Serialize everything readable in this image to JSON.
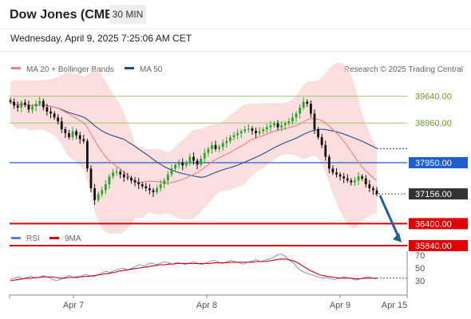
{
  "header": {
    "title": "Dow Jones (CME)",
    "interval": "30 MIN",
    "datetime": "Wednesday, April 9, 2025 7:25:06 AM CET"
  },
  "legend": {
    "items": [
      {
        "label": "MA 20 + Bollinger Bands",
        "color": "#f08080"
      },
      {
        "label": "MA 50",
        "color": "#1f4e8c"
      }
    ],
    "copyright": "Research © 2025 Trading Central"
  },
  "rsi_legend": {
    "items": [
      {
        "label": "RSI",
        "color": "#5b7fe0"
      },
      {
        "label": "9MA",
        "color": "#e00000"
      }
    ]
  },
  "colors": {
    "up": "#22aa22",
    "down": "#111111",
    "resistance": "#99cc66",
    "pivot": "#1f5fd0",
    "support": "#e00000",
    "band": "#f8c8c8",
    "ma20": "#f08080",
    "ma50": "#1f4e8c",
    "arrow": "#1f5fa0",
    "current": "#333333"
  },
  "chart_data": [
    {
      "type": "candlestick",
      "x_labels": [
        "Apr 7",
        "Apr 8",
        "Apr 9",
        "Apr 15"
      ],
      "ylim": [
        35700,
        40800
      ],
      "levels": [
        {
          "label": "39640.00",
          "value": 39640,
          "kind": "resistance"
        },
        {
          "label": "38960.00",
          "value": 38960,
          "kind": "resistance"
        },
        {
          "label": "37950.00",
          "value": 37950,
          "kind": "pivot"
        },
        {
          "label": "37156.00",
          "value": 37156,
          "kind": "current"
        },
        {
          "label": "36400.00",
          "value": 36400,
          "kind": "support"
        },
        {
          "label": "35840.00",
          "value": 35840,
          "kind": "support"
        }
      ],
      "close": [
        39500,
        39400,
        39350,
        39480,
        39420,
        39300,
        39380,
        39450,
        39520,
        39360,
        39250,
        39200,
        39100,
        39000,
        38800,
        38700,
        38600,
        38750,
        38650,
        38550,
        38500,
        37800,
        37300,
        37000,
        37150,
        37250,
        37400,
        37600,
        37700,
        37720,
        37650,
        37580,
        37560,
        37500,
        37450,
        37400,
        37350,
        37300,
        37250,
        37200,
        37300,
        37400,
        37500,
        37650,
        37800,
        37900,
        37950,
        37880,
        37950,
        38100,
        38000,
        37900,
        38050,
        38200,
        38300,
        38400,
        38300,
        38350,
        38450,
        38500,
        38600,
        38650,
        38700,
        38750,
        38800,
        38820,
        38760,
        38700,
        38750,
        38800,
        38850,
        38900,
        38950,
        38850,
        38900,
        38950,
        39000,
        39100,
        39200,
        39350,
        39500,
        39450,
        39200,
        38800,
        38600,
        38400,
        38100,
        37800,
        37700,
        37650,
        37600,
        37550,
        37500,
        37450,
        37500,
        37600,
        37550,
        37400,
        37300,
        37250,
        37156
      ]
    },
    {
      "type": "line",
      "title": "RSI",
      "ylim": [
        10,
        80
      ],
      "ticks": [
        70,
        50,
        30
      ],
      "series": [
        {
          "name": "RSI",
          "values": [
            32,
            34,
            36,
            33,
            35,
            37,
            34,
            36,
            38,
            35,
            33,
            30,
            32,
            35,
            38,
            36,
            34,
            37,
            40,
            38,
            36,
            39,
            42,
            45,
            43,
            46,
            48,
            50,
            47,
            49,
            52,
            55,
            53,
            56,
            58,
            55,
            57,
            60,
            58,
            56,
            59,
            57,
            55,
            58,
            60,
            57,
            55,
            58,
            60,
            62,
            59,
            57,
            60,
            62,
            60,
            58,
            56,
            59,
            61,
            63,
            60,
            62,
            64,
            66,
            70,
            72,
            68,
            62,
            58,
            50,
            45,
            42,
            40,
            38,
            36,
            34,
            35,
            33,
            32,
            34,
            36,
            35,
            33,
            31,
            33,
            35,
            36,
            34,
            33
          ]
        },
        {
          "name": "9MA",
          "values": [
            30,
            31,
            32,
            33,
            34,
            34,
            35,
            35,
            36,
            36,
            36,
            35,
            34,
            34,
            35,
            35,
            36,
            36,
            37,
            37,
            38,
            39,
            40,
            41,
            42,
            43,
            45,
            46,
            47,
            48,
            49,
            50,
            51,
            52,
            53,
            54,
            55,
            55,
            56,
            56,
            57,
            57,
            57,
            57,
            57,
            57,
            57,
            57,
            57,
            58,
            58,
            58,
            58,
            59,
            59,
            59,
            59,
            59,
            59,
            60,
            60,
            60,
            61,
            62,
            63,
            64,
            64,
            63,
            61,
            58,
            54,
            50,
            46,
            43,
            40,
            38,
            37,
            36,
            35,
            34,
            34,
            34,
            34,
            33,
            33,
            34,
            34,
            34,
            34
          ]
        }
      ]
    }
  ]
}
